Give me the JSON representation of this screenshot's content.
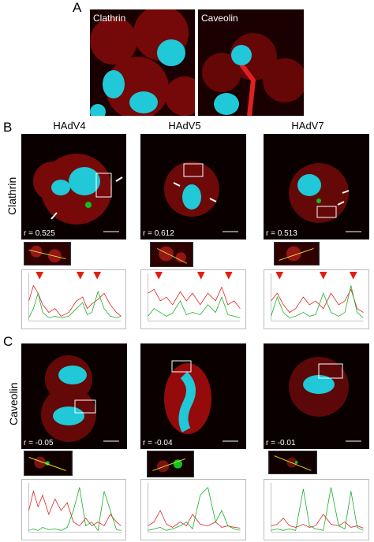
{
  "panels": {
    "A": {
      "letter": "A",
      "labels": [
        "Clathrin",
        "Caveolin"
      ]
    },
    "B": {
      "letter": "B",
      "row_label": "Clathrin"
    },
    "C": {
      "letter": "C",
      "row_label": "Caveolin"
    }
  },
  "columns": [
    "HAdV4",
    "HAdV5",
    "HAdV7"
  ],
  "clathrin_r": [
    "r = 0.525",
    "r = 0.612",
    "r = 0.513"
  ],
  "caveolin_r": [
    "r = -0.05",
    "r = -0.04",
    "r = -0.01"
  ],
  "colors": {
    "red": "#e01010",
    "green": "#10c020",
    "cyan": "#20d0e0",
    "blue": "#3040c0",
    "arrow": "#e02010"
  }
}
